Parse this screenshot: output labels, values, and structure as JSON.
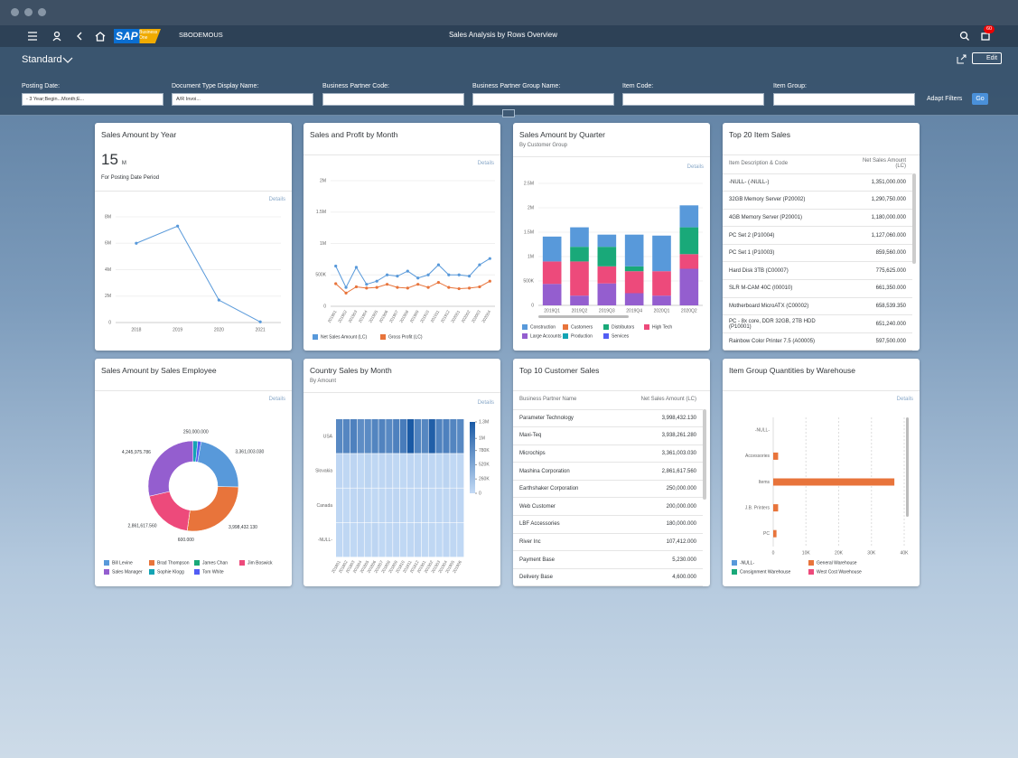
{
  "logo": {
    "brand": "SAP",
    "product": "Business One"
  },
  "header": {
    "company": "SBODEMOUS",
    "title": "Sales Analysis by Rows Overview",
    "badge": "60",
    "variant": "Standard",
    "edit": "Edit"
  },
  "filters": {
    "fields": [
      {
        "label": "Posting Date:",
        "value": "- 3 Year;Begin...Month;E..."
      },
      {
        "label": "Document Type Display Name:",
        "value": "A/R Invoi..."
      },
      {
        "label": "Business Partner Code:"
      },
      {
        "label": "Business Partner Group Name:"
      },
      {
        "label": "Item Code:"
      },
      {
        "label": "Item Group:"
      }
    ],
    "adapt": "Adapt Filters",
    "go": "Go"
  },
  "cards": [
    {
      "title": "Sales Amount by Year",
      "kpi": {
        "value": 15,
        "unit": "M",
        "caption": "For Posting Date Period"
      },
      "details": "Details",
      "chart": {
        "type": "line",
        "categories": [
          "2018",
          "2019",
          "2020",
          "2021"
        ],
        "series": [
          {
            "color": "#5899da",
            "values": [
              6000000,
              7300000,
              1700000,
              50000
            ]
          }
        ],
        "ylim": [
          0,
          8000000
        ],
        "yticks": [
          0,
          {
            "value": 2000000,
            "label": "2M"
          },
          {
            "value": 4000000,
            "label": "4M"
          },
          {
            "value": 6000000,
            "label": "6M"
          },
          {
            "value": 8000000,
            "label": "8M"
          }
        ]
      }
    },
    {
      "title": "Sales and Profit by Month",
      "details": "Details",
      "chart": {
        "type": "line",
        "categories": [
          "201901",
          "201902",
          "201903",
          "201904",
          "201905",
          "201906",
          "201907",
          "201908",
          "201909",
          "201910",
          "201911",
          "201912",
          "202001",
          "202002",
          "202003",
          "202004"
        ],
        "series": [
          {
            "name": "Net Sales Amount (LC)",
            "color": "#5899da",
            "values": [
              640000,
              300000,
              620000,
              350000,
              400000,
              500000,
              480000,
              560000,
              450000,
              500000,
              660000,
              500000,
              500000,
              480000,
              660000,
              760000
            ]
          },
          {
            "name": "Gross Profit (LC)",
            "color": "#e8743b",
            "values": [
              360000,
              210000,
              310000,
              290000,
              300000,
              350000,
              300000,
              290000,
              350000,
              300000,
              380000,
              300000,
              280000,
              290000,
              310000,
              400000
            ]
          }
        ],
        "ylim": [
          0,
          2000000
        ],
        "yticks": [
          0,
          {
            "value": 500000,
            "label": "500K"
          },
          {
            "value": 1000000,
            "label": "1M"
          },
          {
            "value": 1500000,
            "label": "1.5M"
          },
          {
            "value": 2000000,
            "label": "2M"
          }
        ]
      }
    },
    {
      "title": "Sales Amount by Quarter",
      "subtitle": "By Customer Group",
      "details": "Details",
      "chart": {
        "type": "bar",
        "stacked": true,
        "categories": [
          "2019Q1",
          "2019Q2",
          "2019Q3",
          "2019Q4",
          "2020Q1",
          "2020Q2"
        ],
        "series": [
          {
            "name": "Construction",
            "color": "#5899da",
            "values": [
              510000,
              400000,
              250000,
              650000,
              730000,
              450000
            ]
          },
          {
            "name": "Customers",
            "color": "#e8743b",
            "values": [
              0,
              0,
              0,
              0,
              0,
              0
            ]
          },
          {
            "name": "Distributors",
            "color": "#19a979",
            "values": [
              0,
              300000,
              400000,
              100000,
              0,
              550000
            ]
          },
          {
            "name": "High Tech",
            "color": "#ed4a7b",
            "values": [
              460000,
              700000,
              350000,
              450000,
              500000,
              300000
            ]
          },
          {
            "name": "Large Accounts",
            "color": "#945ecf",
            "values": [
              440000,
              200000,
              450000,
              250000,
              200000,
              750000
            ]
          },
          {
            "name": "Production",
            "color": "#13a4b4",
            "values": [
              0,
              0,
              0,
              0,
              0,
              0
            ]
          },
          {
            "name": "Services",
            "color": "#525df4",
            "values": [
              0,
              0,
              0,
              0,
              0,
              0
            ]
          }
        ],
        "ylim": [
          0,
          2500000
        ],
        "yticks": [
          0,
          {
            "value": 500000,
            "label": "500K"
          },
          {
            "value": 1000000,
            "label": "1M"
          },
          {
            "value": 1500000,
            "label": "1.5M"
          },
          {
            "value": 2000000,
            "label": "2M"
          },
          {
            "value": 2500000,
            "label": "2.5M"
          }
        ]
      }
    },
    {
      "title": "Top 20 Item Sales",
      "table": {
        "columns": [
          "Item Description & Code",
          "Net Sales Amount (LC)"
        ],
        "rows": [
          [
            "-NULL- (-NULL-)",
            "1,351,000.000"
          ],
          [
            "32GB Memory Server (P20002)",
            "1,290,750.000"
          ],
          [
            "4GB Memory Server (P20001)",
            "1,180,000.000"
          ],
          [
            "PC Set 2 (P10004)",
            "1,127,060.000"
          ],
          [
            "PC Set 1 (P10003)",
            "859,560.000"
          ],
          [
            "Hard Disk 3TB (C00007)",
            "775,625.000"
          ],
          [
            "SLR M-CAM 40C (I00010)",
            "661,350.000"
          ],
          [
            "Motherboard MicroATX (C00002)",
            "658,539.350"
          ],
          [
            "PC - 8x core, DDR 32GB, 2TB HDD (P10001)",
            "651,240.000"
          ],
          [
            "Rainbow Color Printer 7.5 (A00005)",
            "597,500.000"
          ]
        ]
      }
    },
    {
      "title": "Sales Amount by Sales Employee",
      "details": "Details",
      "chart": {
        "type": "pie",
        "donut": true,
        "categories": [
          "Bill Levine",
          "Brad Thompson",
          "James Chan",
          "Jim Boswick",
          "Sales Manager",
          "Sophie Klogg",
          "Tom White"
        ],
        "colors": [
          "#5899da",
          "#e8743b",
          "#19a979",
          "#ed4a7b",
          "#945ecf",
          "#13a4b4",
          "#525df4"
        ],
        "values": [
          3361003.03,
          3998432.13,
          600,
          2861617.56,
          4245975.786,
          250000,
          180000
        ],
        "value_labels": [
          "3,361,003.030",
          "3,998,432.130",
          "600.000",
          "2,861,617.560",
          "4,245,975.786",
          "250,000.000",
          null
        ]
      }
    },
    {
      "title": "Country Sales by Month",
      "subtitle": "By Amount",
      "details": "Details",
      "chart": {
        "type": "heatmap",
        "categories": [
          "201801",
          "201802",
          "201803",
          "201804",
          "201805",
          "201806",
          "201807",
          "201808",
          "201809",
          "201810",
          "201811",
          "201812",
          "201901",
          "201902",
          "201903",
          "201904",
          "201905",
          "201906"
        ],
        "rows": [
          "USA",
          "Slovakia",
          "Canada",
          "-NULL-"
        ],
        "values": [
          [
            820000,
            850000,
            900000,
            780000,
            800000,
            860000,
            880000,
            820000,
            900000,
            950000,
            1300000,
            870000,
            840000,
            1250000,
            880000,
            900000,
            860000,
            820000
          ],
          [
            40000,
            30000,
            50000,
            20000,
            60000,
            30000,
            40000,
            50000,
            30000,
            20000,
            40000,
            30000,
            50000,
            40000,
            30000,
            60000,
            20000,
            30000
          ],
          [
            30000,
            20000,
            40000,
            50000,
            30000,
            20000,
            30000,
            40000,
            50000,
            30000,
            20000,
            40000,
            30000,
            20000,
            40000,
            30000,
            50000,
            40000
          ],
          [
            20000,
            30000,
            20000,
            40000,
            30000,
            50000,
            20000,
            30000,
            40000,
            20000,
            30000,
            50000,
            20000,
            30000,
            20000,
            40000,
            30000,
            20000
          ]
        ],
        "colors": [
          "#c3daf5",
          "#1a5aa5"
        ],
        "clim": [
          0,
          1300000
        ],
        "cticks": [
          0,
          {
            "value": 260000,
            "label": "260K"
          },
          {
            "value": 520000,
            "label": "520K"
          },
          {
            "value": 780000,
            "label": "780K"
          },
          {
            "value": 1000000,
            "label": "1M"
          },
          {
            "value": 1300000,
            "label": "1.3M"
          }
        ]
      }
    },
    {
      "title": "Top 10 Customer Sales",
      "table": {
        "columns": [
          "Business Partner Name",
          "Net Sales Amount (LC)"
        ],
        "rows": [
          [
            "Parameter Technology",
            "3,998,432.130"
          ],
          [
            "Maxi-Teq",
            "3,938,261.280"
          ],
          [
            "Microchips",
            "3,361,003.030"
          ],
          [
            "Mashina Corporation",
            "2,861,617.560"
          ],
          [
            "Earthshaker Corporation",
            "250,000.000"
          ],
          [
            "Web Customer",
            "200,000.000"
          ],
          [
            "LBF Accessories",
            "180,000.000"
          ],
          [
            "River Inc",
            "107,412.000"
          ],
          [
            "Payment Base",
            "5,230.000"
          ],
          [
            "Delivery Base",
            "4,600.000"
          ]
        ]
      }
    },
    {
      "title": "Item Group Quantities by Warehouse",
      "details": "Details",
      "chart": {
        "type": "hbar",
        "stacked": true,
        "categories": [
          "-NULL-",
          "Accessories",
          "Items",
          "J.B. Printers",
          "PC"
        ],
        "series": [
          {
            "name": "-NULL-",
            "color": "#5899da",
            "values": [
              0,
              0,
              0,
              0,
              0
            ]
          },
          {
            "name": "General Warehouse",
            "color": "#e8743b",
            "values": [
              0,
              1500,
              37000,
              1500,
              1000
            ]
          },
          {
            "name": "Consignment Warehouse",
            "color": "#19a979",
            "values": [
              0,
              0,
              0,
              0,
              0
            ]
          },
          {
            "name": "West Cost Warehouse",
            "color": "#ed4a7b",
            "values": [
              0,
              0,
              0,
              0,
              0
            ]
          }
        ],
        "xlim": [
          0,
          40000
        ],
        "xticks": [
          0,
          {
            "value": 10000,
            "label": "10K"
          },
          {
            "value": 20000,
            "label": "20K"
          },
          {
            "value": 30000,
            "label": "30K"
          },
          {
            "value": 40000,
            "label": "40K"
          }
        ]
      }
    }
  ]
}
